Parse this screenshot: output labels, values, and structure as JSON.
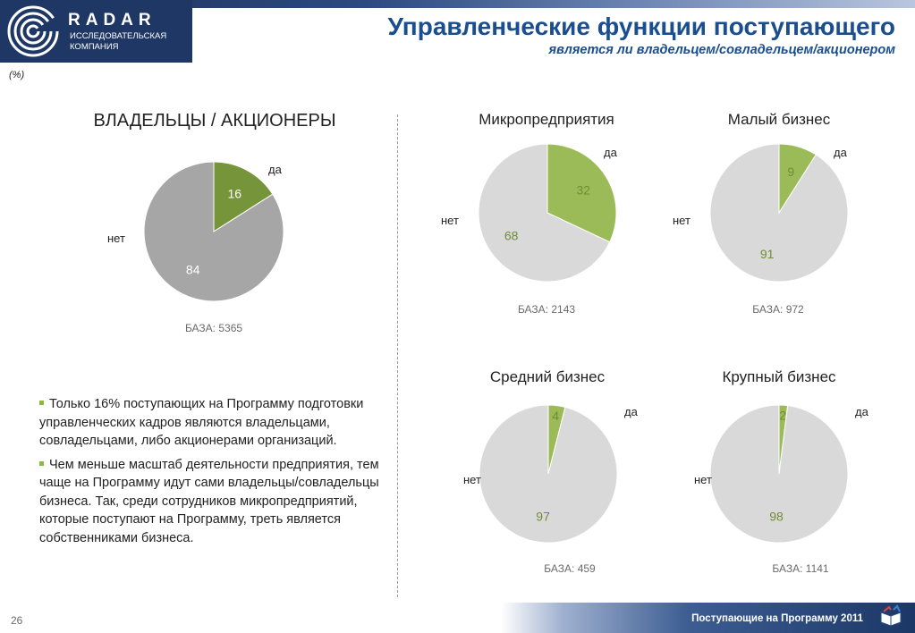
{
  "header": {
    "logo_name": "RADAR",
    "logo_sub_line1": "ИССЛЕДОВАТЕЛЬСКАЯ",
    "logo_sub_line2": "КОМПАНИЯ",
    "title": "Управленческие функции поступающего",
    "subtitle": "является ли владельцем/совладельцем/акционером"
  },
  "units": "(%)",
  "colors": {
    "yes_main": "#76953b",
    "no_main": "#a6a6a6",
    "yes_seg": "#9bbb59",
    "no_seg": "#d9d9d9",
    "yes_num_seg": "#6f8d35"
  },
  "chart_data": [
    {
      "id": "owners",
      "type": "pie",
      "title": "ВЛАДЕЛЬЦЫ / АКЦИОНЕРЫ",
      "categories": [
        "да",
        "нет"
      ],
      "values": [
        16,
        84
      ],
      "base": "БАЗА: 5365"
    },
    {
      "id": "micro",
      "type": "pie",
      "title": "Микропредприятия",
      "categories": [
        "да",
        "нет"
      ],
      "values": [
        32,
        68
      ],
      "base": "БАЗА: 2143"
    },
    {
      "id": "small",
      "type": "pie",
      "title": "Малый бизнес",
      "categories": [
        "да",
        "нет"
      ],
      "values": [
        9,
        91
      ],
      "base": "БАЗА: 972"
    },
    {
      "id": "medium",
      "type": "pie",
      "title": "Средний бизнес",
      "categories": [
        "да",
        "нет"
      ],
      "values": [
        4,
        97
      ],
      "base": "БАЗА: 459"
    },
    {
      "id": "large",
      "type": "pie",
      "title": "Крупный бизнес",
      "categories": [
        "да",
        "нет"
      ],
      "values": [
        2,
        98
      ],
      "base": "БАЗА: 1141"
    }
  ],
  "bullets": [
    "Только 16% поступающих на Программу подготовки управленческих кадров являются владельцами, совладельцами, либо акционерами организаций.",
    "Чем меньше масштаб деятельности предприятия, тем чаще на Программу идут сами владельцы/совладельцы бизнеса. Так, среди сотрудников микропредприятий, которые поступают на Программу, треть является собственниками бизнеса."
  ],
  "footer": {
    "text": "Поступающие на Программу 2011",
    "page_number": "26",
    "icon": "book-icon"
  }
}
